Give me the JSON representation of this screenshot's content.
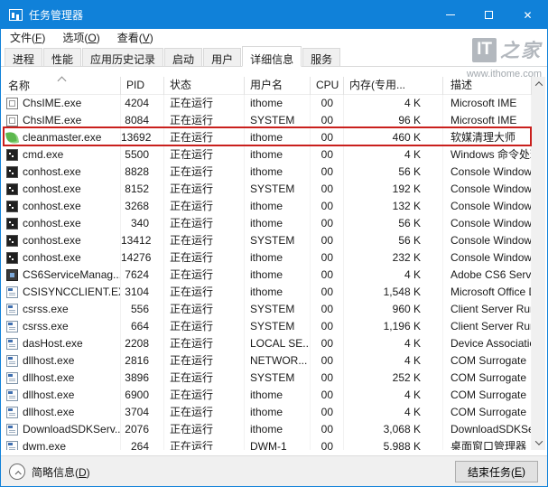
{
  "window": {
    "title": "任务管理器"
  },
  "icons": {
    "close": "✕"
  },
  "menu": {
    "items": [
      {
        "pre": "文件(",
        "key": "F",
        "post": ")"
      },
      {
        "pre": "选项(",
        "key": "O",
        "post": ")"
      },
      {
        "pre": "查看(",
        "key": "V",
        "post": ")"
      }
    ]
  },
  "tabs": {
    "items": [
      {
        "label": "进程",
        "selected": false
      },
      {
        "label": "性能",
        "selected": false
      },
      {
        "label": "应用历史记录",
        "selected": false
      },
      {
        "label": "启动",
        "selected": false
      },
      {
        "label": "用户",
        "selected": false
      },
      {
        "label": "详细信息",
        "selected": true
      },
      {
        "label": "服务",
        "selected": false
      }
    ]
  },
  "watermark": {
    "logo_it": "IT",
    "logo_zhijia": "之家",
    "url": "www.ithome.com"
  },
  "table": {
    "sort_column": "名称",
    "sort_direction": "ascending",
    "columns": [
      "名称",
      "PID",
      "状态",
      "用户名",
      "CPU",
      "内存(专用...",
      "描述"
    ],
    "rows": [
      {
        "icon": "ime",
        "name": "ChsIME.exe",
        "pid": "4204",
        "status": "正在运行",
        "user": "ithome",
        "cpu": "00",
        "memory": "4 K",
        "description": "Microsoft IME",
        "highlighted": false
      },
      {
        "icon": "ime",
        "name": "ChsIME.exe",
        "pid": "8084",
        "status": "正在运行",
        "user": "SYSTEM",
        "cpu": "00",
        "memory": "96 K",
        "description": "Microsoft IME",
        "highlighted": false
      },
      {
        "icon": "leaf",
        "name": "cleanmaster.exe",
        "pid": "13692",
        "status": "正在运行",
        "user": "ithome",
        "cpu": "00",
        "memory": "460 K",
        "description": "软媒清理大师",
        "highlighted": true
      },
      {
        "icon": "console",
        "name": "cmd.exe",
        "pid": "5500",
        "status": "正在运行",
        "user": "ithome",
        "cpu": "00",
        "memory": "4 K",
        "description": "Windows 命令处理程序",
        "highlighted": false
      },
      {
        "icon": "console",
        "name": "conhost.exe",
        "pid": "8828",
        "status": "正在运行",
        "user": "ithome",
        "cpu": "00",
        "memory": "56 K",
        "description": "Console Window Host",
        "highlighted": false
      },
      {
        "icon": "console",
        "name": "conhost.exe",
        "pid": "8152",
        "status": "正在运行",
        "user": "SYSTEM",
        "cpu": "00",
        "memory": "192 K",
        "description": "Console Window Host",
        "highlighted": false
      },
      {
        "icon": "console",
        "name": "conhost.exe",
        "pid": "3268",
        "status": "正在运行",
        "user": "ithome",
        "cpu": "00",
        "memory": "132 K",
        "description": "Console Window Host",
        "highlighted": false
      },
      {
        "icon": "console",
        "name": "conhost.exe",
        "pid": "340",
        "status": "正在运行",
        "user": "ithome",
        "cpu": "00",
        "memory": "56 K",
        "description": "Console Window Host",
        "highlighted": false
      },
      {
        "icon": "console",
        "name": "conhost.exe",
        "pid": "13412",
        "status": "正在运行",
        "user": "SYSTEM",
        "cpu": "00",
        "memory": "56 K",
        "description": "Console Window Host",
        "highlighted": false
      },
      {
        "icon": "console",
        "name": "conhost.exe",
        "pid": "14276",
        "status": "正在运行",
        "user": "ithome",
        "cpu": "00",
        "memory": "232 K",
        "description": "Console Window Host",
        "highlighted": false
      },
      {
        "icon": "cs6",
        "name": "CS6ServiceManag...",
        "pid": "7624",
        "status": "正在运行",
        "user": "ithome",
        "cpu": "00",
        "memory": "4 K",
        "description": "Adobe CS6 Service M...",
        "highlighted": false
      },
      {
        "icon": "app",
        "name": "CSISYNCCLIENT.EXE",
        "pid": "3104",
        "status": "正在运行",
        "user": "ithome",
        "cpu": "00",
        "memory": "1,548 K",
        "description": "Microsoft Office Docu...",
        "highlighted": false
      },
      {
        "icon": "app",
        "name": "csrss.exe",
        "pid": "556",
        "status": "正在运行",
        "user": "SYSTEM",
        "cpu": "00",
        "memory": "960 K",
        "description": "Client Server Runtime ...",
        "highlighted": false
      },
      {
        "icon": "app",
        "name": "csrss.exe",
        "pid": "664",
        "status": "正在运行",
        "user": "SYSTEM",
        "cpu": "00",
        "memory": "1,196 K",
        "description": "Client Server Runtime ...",
        "highlighted": false
      },
      {
        "icon": "app",
        "name": "dasHost.exe",
        "pid": "2208",
        "status": "正在运行",
        "user": "LOCAL SE...",
        "cpu": "00",
        "memory": "4 K",
        "description": "Device Association Fr...",
        "highlighted": false
      },
      {
        "icon": "app",
        "name": "dllhost.exe",
        "pid": "2816",
        "status": "正在运行",
        "user": "NETWOR...",
        "cpu": "00",
        "memory": "4 K",
        "description": "COM Surrogate",
        "highlighted": false
      },
      {
        "icon": "app",
        "name": "dllhost.exe",
        "pid": "3896",
        "status": "正在运行",
        "user": "SYSTEM",
        "cpu": "00",
        "memory": "252 K",
        "description": "COM Surrogate",
        "highlighted": false
      },
      {
        "icon": "app",
        "name": "dllhost.exe",
        "pid": "6900",
        "status": "正在运行",
        "user": "ithome",
        "cpu": "00",
        "memory": "4 K",
        "description": "COM Surrogate",
        "highlighted": false
      },
      {
        "icon": "app",
        "name": "dllhost.exe",
        "pid": "3704",
        "status": "正在运行",
        "user": "ithome",
        "cpu": "00",
        "memory": "4 K",
        "description": "COM Surrogate",
        "highlighted": false
      },
      {
        "icon": "app",
        "name": "DownloadSDKServ...",
        "pid": "2076",
        "status": "正在运行",
        "user": "ithome",
        "cpu": "00",
        "memory": "3,068 K",
        "description": "DownloadSDKServer",
        "highlighted": false
      },
      {
        "icon": "app",
        "name": "dwm.exe",
        "pid": "264",
        "status": "正在运行",
        "user": "DWM-1",
        "cpu": "00",
        "memory": "5,988 K",
        "description": "桌面窗口管理器",
        "highlighted": false
      }
    ]
  },
  "footer": {
    "toggle": {
      "pre": "简略信息(",
      "key": "D",
      "post": ")"
    },
    "end_task": {
      "pre": "结束任务(",
      "key": "E",
      "post": ")"
    }
  },
  "colors": {
    "accent": "#1081d9",
    "highlight_border": "#c9201d",
    "leaf_green": "#5cb84e"
  }
}
